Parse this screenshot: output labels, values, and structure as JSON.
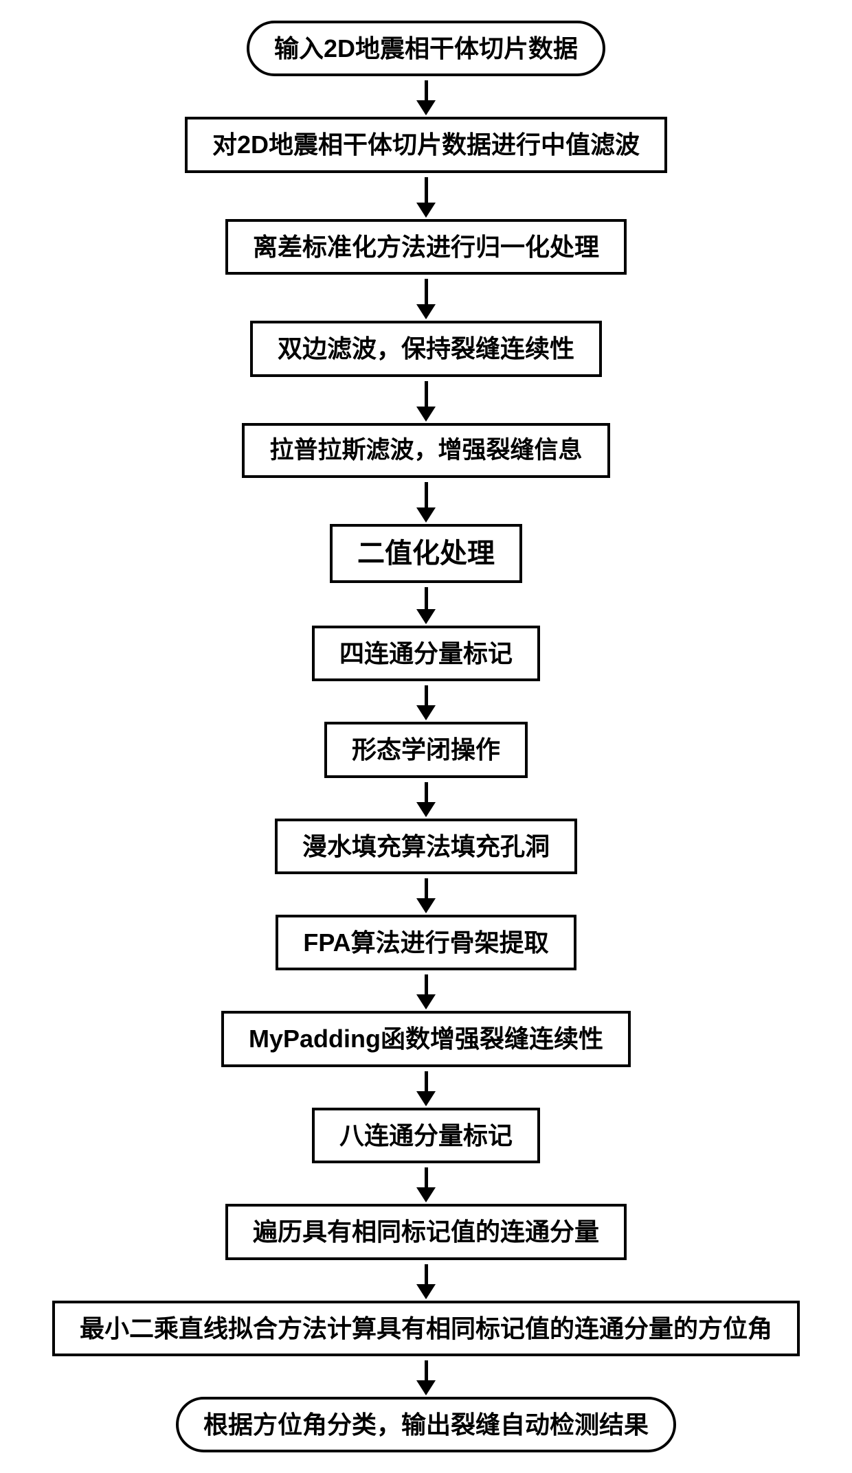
{
  "flowchart": {
    "colors": {
      "border": "#000000",
      "background": "#ffffff",
      "text": "#000000",
      "arrow": "#000000"
    },
    "border_width": 4,
    "font_weight": 700,
    "arrow": {
      "line_width": 5,
      "head_width": 28,
      "head_height": 22
    },
    "nodes": [
      {
        "id": "n0",
        "type": "terminal",
        "label": "输入2D地震相干体切片数据",
        "font_size": 36,
        "arrow_len": 30
      },
      {
        "id": "n1",
        "type": "process",
        "label": "对2D地震相干体切片数据进行中值滤波",
        "font_size": 36,
        "arrow_len": 38
      },
      {
        "id": "n2",
        "type": "process",
        "label": "离差标准化方法进行归一化处理",
        "font_size": 36,
        "arrow_len": 38
      },
      {
        "id": "n3",
        "type": "process",
        "label": "双边滤波，保持裂缝连续性",
        "font_size": 36,
        "arrow_len": 38
      },
      {
        "id": "n4",
        "type": "process",
        "label": "拉普拉斯滤波，增强裂缝信息",
        "font_size": 35,
        "arrow_len": 38
      },
      {
        "id": "n5",
        "type": "process",
        "label": "二值化处理",
        "font_size": 40,
        "arrow_len": 33
      },
      {
        "id": "n6",
        "type": "process",
        "label": "四连通分量标记",
        "font_size": 36,
        "arrow_len": 30
      },
      {
        "id": "n7",
        "type": "process",
        "label": "形态学闭操作",
        "font_size": 36,
        "arrow_len": 30
      },
      {
        "id": "n8",
        "type": "process",
        "label": "漫水填充算法填充孔洞",
        "font_size": 36,
        "arrow_len": 30
      },
      {
        "id": "n9",
        "type": "process",
        "label": "FPA算法进行骨架提取",
        "font_size": 36,
        "arrow_len": 30
      },
      {
        "id": "n10",
        "type": "process",
        "label": "MyPadding函数增强裂缝连续性",
        "font_size": 36,
        "arrow_len": 30
      },
      {
        "id": "n11",
        "type": "process",
        "label": "八连通分量标记",
        "font_size": 36,
        "arrow_len": 30
      },
      {
        "id": "n12",
        "type": "process",
        "label": "遍历具有相同标记值的连通分量",
        "font_size": 36,
        "arrow_len": 30
      },
      {
        "id": "n13",
        "type": "process",
        "label": "最小二乘直线拟合方法计算具有相同标记值的连通分量的方位角",
        "font_size": 36,
        "arrow_len": 30
      },
      {
        "id": "n14",
        "type": "terminal",
        "label": "根据方位角分类，输出裂缝自动检测结果",
        "font_size": 36,
        "arrow_len": 0
      }
    ]
  }
}
